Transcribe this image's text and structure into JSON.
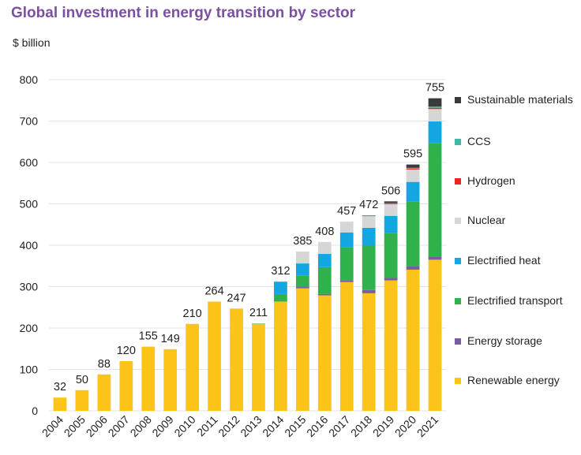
{
  "title": "Global investment in energy transition by sector",
  "unit_label": "$ billion",
  "chart_data": {
    "type": "bar",
    "stacked": true,
    "title": "Global investment in energy transition by sector",
    "ylabel": "$ billion",
    "ylim": [
      0,
      800
    ],
    "yticks": [
      0,
      100,
      200,
      300,
      400,
      500,
      600,
      700,
      800
    ],
    "grid": true,
    "legend_position": "right",
    "categories": [
      "2004",
      "2005",
      "2006",
      "2007",
      "2008",
      "2009",
      "2010",
      "2011",
      "2012",
      "2013",
      "2014",
      "2015",
      "2016",
      "2017",
      "2018",
      "2019",
      "2020",
      "2021"
    ],
    "totals": [
      32,
      50,
      88,
      120,
      155,
      149,
      210,
      264,
      247,
      211,
      312,
      385,
      408,
      457,
      472,
      506,
      595,
      755
    ],
    "series": [
      {
        "name": "Renewable energy",
        "color": "#fcc419",
        "values": [
          32,
          50,
          88,
          120,
          155,
          149,
          210,
          264,
          247,
          210,
          264,
          296,
          279,
          311,
          284,
          315,
          341,
          365
        ]
      },
      {
        "name": "Energy storage",
        "color": "#7b5aa6",
        "values": [
          0,
          0,
          0,
          0,
          0,
          0,
          0,
          0,
          0,
          0,
          0,
          3,
          3,
          4,
          8,
          6,
          9,
          8
        ]
      },
      {
        "name": "Electrified transport",
        "color": "#2fb24c",
        "values": [
          0,
          0,
          0,
          0,
          0,
          0,
          0,
          0,
          0,
          1,
          18,
          27,
          65,
          80,
          108,
          108,
          155,
          274
        ]
      },
      {
        "name": "Electrified heat",
        "color": "#12a7e3",
        "values": [
          0,
          0,
          0,
          0,
          0,
          0,
          0,
          0,
          0,
          0,
          30,
          30,
          32,
          36,
          42,
          42,
          48,
          52
        ]
      },
      {
        "name": "Nuclear",
        "color": "#d6d6d6",
        "values": [
          0,
          0,
          0,
          0,
          0,
          0,
          0,
          0,
          0,
          0,
          0,
          29,
          29,
          26,
          28,
          28,
          30,
          30
        ]
      },
      {
        "name": "Hydrogen",
        "color": "#e8261b",
        "values": [
          0,
          0,
          0,
          0,
          0,
          0,
          0,
          0,
          0,
          0,
          0,
          0,
          0,
          0,
          0,
          1,
          2,
          3
        ]
      },
      {
        "name": "CCS",
        "color": "#3fb9a3",
        "values": [
          0,
          0,
          0,
          0,
          0,
          0,
          0,
          0,
          0,
          0,
          0,
          0,
          0,
          0,
          1,
          2,
          2,
          3
        ]
      },
      {
        "name": "Sustainable materials",
        "color": "#3a3a3a",
        "values": [
          0,
          0,
          0,
          0,
          0,
          0,
          0,
          0,
          0,
          0,
          0,
          0,
          0,
          0,
          1,
          4,
          8,
          20
        ]
      }
    ]
  },
  "legend": [
    {
      "label": "Sustainable materials",
      "color": "#3a3a3a"
    },
    {
      "label": "CCS",
      "color": "#3fb9a3"
    },
    {
      "label": "Hydrogen",
      "color": "#e8261b"
    },
    {
      "label": "Nuclear",
      "color": "#d6d6d6"
    },
    {
      "label": "Electrified heat",
      "color": "#12a7e3"
    },
    {
      "label": "Electrified transport",
      "color": "#2fb24c"
    },
    {
      "label": "Energy storage",
      "color": "#7b5aa6"
    },
    {
      "label": "Renewable energy",
      "color": "#fcc419"
    }
  ]
}
